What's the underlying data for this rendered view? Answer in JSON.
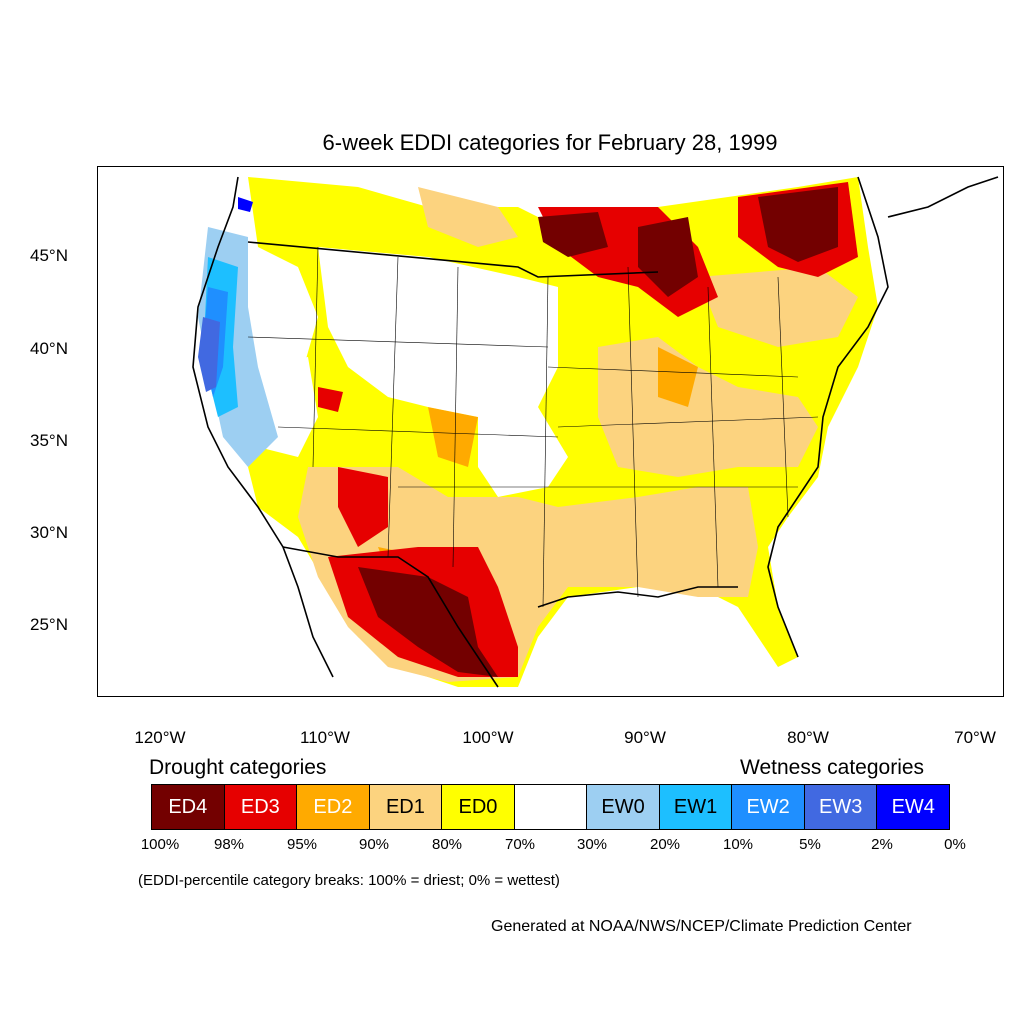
{
  "title": "6-week EDDI categories for February 28, 1999",
  "lat_labels": [
    "45°N",
    "40°N",
    "35°N",
    "30°N",
    "25°N"
  ],
  "lon_labels": [
    "120°W",
    "110°W",
    "100°W",
    "90°W",
    "80°W",
    "70°W"
  ],
  "legend": {
    "drought_heading": "Drought categories",
    "wetness_heading": "Wetness categories",
    "categories": [
      {
        "label": "ED4",
        "color": "#730000",
        "text_color": "#ffffff"
      },
      {
        "label": "ED3",
        "color": "#e60000",
        "text_color": "#ffffff"
      },
      {
        "label": "ED2",
        "color": "#ffaa00",
        "text_color": "#ffffff"
      },
      {
        "label": "ED1",
        "color": "#fcd37f",
        "text_color": "#000000"
      },
      {
        "label": "ED0",
        "color": "#ffff00",
        "text_color": "#000000"
      },
      {
        "label": "",
        "color": "#ffffff",
        "text_color": "#000000"
      },
      {
        "label": "EW0",
        "color": "#9dcff2",
        "text_color": "#000000"
      },
      {
        "label": "EW1",
        "color": "#1dbfff",
        "text_color": "#000000"
      },
      {
        "label": "EW2",
        "color": "#1f8fff",
        "text_color": "#ffffff"
      },
      {
        "label": "EW3",
        "color": "#4169e1",
        "text_color": "#ffffff"
      },
      {
        "label": "EW4",
        "color": "#0000ff",
        "text_color": "#ffffff"
      }
    ],
    "percent_breaks": [
      "100%",
      "98%",
      "95%",
      "90%",
      "80%",
      "70%",
      "30%",
      "20%",
      "10%",
      "5%",
      "2%",
      "0%"
    ]
  },
  "note": "(EDDI-percentile category breaks: 100% = driest; 0% = wettest)",
  "credit": "Generated at NOAA/NWS/NCEP/Climate Prediction Center"
}
